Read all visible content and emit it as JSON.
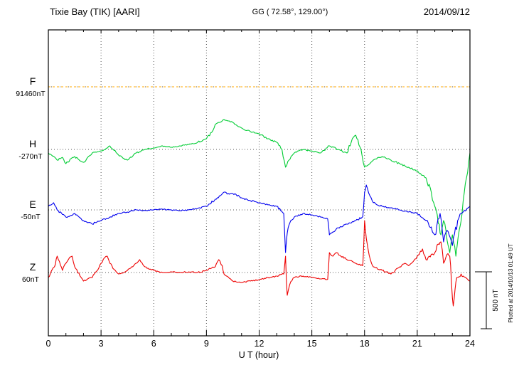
{
  "header": {
    "station": "Tixie Bay (TIK)  [AARI]",
    "coords": "GG ( 72.58°, 129.00°)",
    "date": "2014/09/12"
  },
  "side": {
    "plotted_at": "Plotted at 2014/10/13 01:49 UT",
    "scale_label": "500 nT"
  },
  "chart_data": {
    "type": "line",
    "title": "Tixie Bay (TIK)  [AARI]",
    "xlabel": "U T (hour)",
    "xlim": [
      0,
      24
    ],
    "xticks": [
      0,
      3,
      6,
      9,
      12,
      15,
      18,
      21,
      24
    ],
    "grid": "dotted",
    "legend_position": "left",
    "scale_bar": {
      "nT": 500,
      "label": "500 nT"
    },
    "units": "series points are [UT hour, deviation in nT from baseline_nT]",
    "series": [
      {
        "name": "F",
        "color": "#ffaa00",
        "baseline_label": "91460nT",
        "baseline_nT": 91460,
        "style": "dotted",
        "jitter": false,
        "points": [
          [
            0,
            0
          ],
          [
            24,
            0
          ]
        ]
      },
      {
        "name": "H",
        "color": "#00cc33",
        "baseline_label": "-270nT",
        "baseline_nT": -270,
        "style": "solid",
        "points": [
          [
            0,
            -31
          ],
          [
            0.3,
            -60
          ],
          [
            0.5,
            -94
          ],
          [
            0.8,
            -70
          ],
          [
            1,
            -125
          ],
          [
            1.3,
            -80
          ],
          [
            1.5,
            -63
          ],
          [
            1.8,
            -100
          ],
          [
            2,
            -113
          ],
          [
            2.3,
            -60
          ],
          [
            2.5,
            -31
          ],
          [
            2.8,
            -20
          ],
          [
            3,
            -13
          ],
          [
            3.3,
            10
          ],
          [
            3.5,
            31
          ],
          [
            3.8,
            -10
          ],
          [
            4,
            -50
          ],
          [
            4.3,
            -80
          ],
          [
            4.5,
            -94
          ],
          [
            4.8,
            -60
          ],
          [
            5,
            -31
          ],
          [
            5.5,
            0
          ],
          [
            6,
            13
          ],
          [
            6.5,
            31
          ],
          [
            7,
            19
          ],
          [
            7.5,
            31
          ],
          [
            8,
            44
          ],
          [
            8.5,
            63
          ],
          [
            9,
            94
          ],
          [
            9.3,
            150
          ],
          [
            9.5,
            219
          ],
          [
            9.8,
            240
          ],
          [
            10,
            263
          ],
          [
            10.3,
            250
          ],
          [
            10.5,
            238
          ],
          [
            11,
            188
          ],
          [
            11.5,
            156
          ],
          [
            12,
            138
          ],
          [
            12.5,
            94
          ],
          [
            13,
            63
          ],
          [
            13.3,
            0
          ],
          [
            13.5,
            -156
          ],
          [
            13.7,
            -94
          ],
          [
            14,
            -31
          ],
          [
            14.5,
            0
          ],
          [
            15,
            -13
          ],
          [
            15.5,
            -31
          ],
          [
            16,
            31
          ],
          [
            16.5,
            0
          ],
          [
            17,
            -31
          ],
          [
            17.3,
            94
          ],
          [
            17.5,
            125
          ],
          [
            17.8,
            0
          ],
          [
            18,
            -156
          ],
          [
            18.3,
            -125
          ],
          [
            18.5,
            -94
          ],
          [
            19,
            -63
          ],
          [
            19.5,
            -94
          ],
          [
            20,
            -125
          ],
          [
            20.5,
            -156
          ],
          [
            21,
            -188
          ],
          [
            21.5,
            -250
          ],
          [
            21.8,
            -375
          ],
          [
            22,
            -500
          ],
          [
            22.2,
            -650
          ],
          [
            22.35,
            -750
          ],
          [
            22.5,
            -625
          ],
          [
            22.7,
            -800
          ],
          [
            22.85,
            -906
          ],
          [
            23,
            -750
          ],
          [
            23.2,
            -938
          ],
          [
            23.4,
            -700
          ],
          [
            23.55,
            -563
          ],
          [
            23.8,
            -250
          ],
          [
            24,
            -31
          ]
        ]
      },
      {
        "name": "E",
        "color": "#0000ee",
        "baseline_label": "-50nT",
        "baseline_nT": -50,
        "style": "solid",
        "points": [
          [
            0,
            31
          ],
          [
            0.3,
            63
          ],
          [
            0.5,
            0
          ],
          [
            0.8,
            -40
          ],
          [
            1,
            -63
          ],
          [
            1.5,
            -31
          ],
          [
            2,
            -94
          ],
          [
            2.3,
            -110
          ],
          [
            2.5,
            -125
          ],
          [
            2.8,
            -100
          ],
          [
            3,
            -94
          ],
          [
            3.5,
            -63
          ],
          [
            4,
            -31
          ],
          [
            4.5,
            -19
          ],
          [
            5,
            0
          ],
          [
            5.5,
            -6
          ],
          [
            6,
            0
          ],
          [
            6.5,
            6
          ],
          [
            7,
            0
          ],
          [
            7.5,
            -6
          ],
          [
            8,
            0
          ],
          [
            8.5,
            13
          ],
          [
            9,
            31
          ],
          [
            9.5,
            94
          ],
          [
            9.8,
            125
          ],
          [
            10,
            156
          ],
          [
            10.3,
            138
          ],
          [
            10.5,
            144
          ],
          [
            11,
            106
          ],
          [
            11.5,
            81
          ],
          [
            12,
            63
          ],
          [
            12.5,
            44
          ],
          [
            13,
            31
          ],
          [
            13.4,
            -31
          ],
          [
            13.5,
            -375
          ],
          [
            13.65,
            -156
          ],
          [
            13.8,
            -94
          ],
          [
            14,
            -63
          ],
          [
            14.5,
            -31
          ],
          [
            15,
            -44
          ],
          [
            15.5,
            -63
          ],
          [
            15.9,
            -80
          ],
          [
            16,
            -219
          ],
          [
            16.3,
            -188
          ],
          [
            16.5,
            -156
          ],
          [
            17,
            -125
          ],
          [
            17.5,
            -94
          ],
          [
            17.9,
            -60
          ],
          [
            18,
            156
          ],
          [
            18.1,
            219
          ],
          [
            18.3,
            125
          ],
          [
            18.5,
            63
          ],
          [
            19,
            31
          ],
          [
            19.5,
            19
          ],
          [
            20,
            0
          ],
          [
            20.5,
            -19
          ],
          [
            21,
            -31
          ],
          [
            21.5,
            -94
          ],
          [
            21.8,
            -150
          ],
          [
            22,
            -219
          ],
          [
            22.3,
            -31
          ],
          [
            22.5,
            -281
          ],
          [
            22.7,
            -180
          ],
          [
            23,
            -313
          ],
          [
            23.3,
            -94
          ],
          [
            23.5,
            -31
          ],
          [
            24,
            31
          ]
        ]
      },
      {
        "name": "Z",
        "color": "#ee0000",
        "baseline_label": "60nT",
        "baseline_nT": 60,
        "style": "solid",
        "points": [
          [
            0,
            -44
          ],
          [
            0.2,
            20
          ],
          [
            0.35,
            50
          ],
          [
            0.5,
            144
          ],
          [
            0.7,
            60
          ],
          [
            0.8,
            19
          ],
          [
            1,
            81
          ],
          [
            1.2,
            130
          ],
          [
            1.35,
            144
          ],
          [
            1.5,
            50
          ],
          [
            1.8,
            -30
          ],
          [
            2,
            -75
          ],
          [
            2.3,
            -50
          ],
          [
            2.5,
            -44
          ],
          [
            2.8,
            20
          ],
          [
            3,
            81
          ],
          [
            3.2,
            130
          ],
          [
            3.35,
            144
          ],
          [
            3.5,
            81
          ],
          [
            3.8,
            20
          ],
          [
            4,
            -13
          ],
          [
            4.3,
            0
          ],
          [
            4.5,
            19
          ],
          [
            4.8,
            50
          ],
          [
            5,
            81
          ],
          [
            5.2,
            113
          ],
          [
            5.5,
            50
          ],
          [
            5.8,
            30
          ],
          [
            6,
            19
          ],
          [
            6.5,
            0
          ],
          [
            7,
            6
          ],
          [
            7.5,
            0
          ],
          [
            8,
            6
          ],
          [
            8.5,
            0
          ],
          [
            9,
            19
          ],
          [
            9.3,
            40
          ],
          [
            9.5,
            50
          ],
          [
            9.7,
            113
          ],
          [
            9.9,
            60
          ],
          [
            10,
            -13
          ],
          [
            10.3,
            -50
          ],
          [
            10.5,
            -75
          ],
          [
            11,
            -88
          ],
          [
            11.5,
            -75
          ],
          [
            12,
            -63
          ],
          [
            12.5,
            -44
          ],
          [
            13,
            -31
          ],
          [
            13.4,
            -13
          ],
          [
            13.5,
            144
          ],
          [
            13.6,
            -200
          ],
          [
            13.8,
            -80
          ],
          [
            14,
            -44
          ],
          [
            14.5,
            -31
          ],
          [
            15,
            -44
          ],
          [
            15.5,
            -56
          ],
          [
            15.9,
            -60
          ],
          [
            16,
            175
          ],
          [
            16.2,
            144
          ],
          [
            16.4,
            175
          ],
          [
            16.6,
            150
          ],
          [
            17,
            113
          ],
          [
            17.5,
            81
          ],
          [
            17.9,
            60
          ],
          [
            18,
            456
          ],
          [
            18.1,
            300
          ],
          [
            18.2,
            206
          ],
          [
            18.4,
            80
          ],
          [
            18.5,
            50
          ],
          [
            19,
            19
          ],
          [
            19.5,
            -13
          ],
          [
            20,
            50
          ],
          [
            20.3,
            81
          ],
          [
            20.5,
            60
          ],
          [
            21,
            144
          ],
          [
            21.3,
            206
          ],
          [
            21.5,
            113
          ],
          [
            21.8,
            160
          ],
          [
            22,
            175
          ],
          [
            22.2,
            250
          ],
          [
            22.35,
            269
          ],
          [
            22.5,
            81
          ],
          [
            22.7,
            160
          ],
          [
            22.85,
            144
          ],
          [
            22.95,
            -100
          ],
          [
            23.05,
            -294
          ],
          [
            23.15,
            -150
          ],
          [
            23.25,
            -44
          ],
          [
            23.5,
            -13
          ],
          [
            23.8,
            -50
          ],
          [
            24,
            -75
          ]
        ]
      }
    ]
  }
}
